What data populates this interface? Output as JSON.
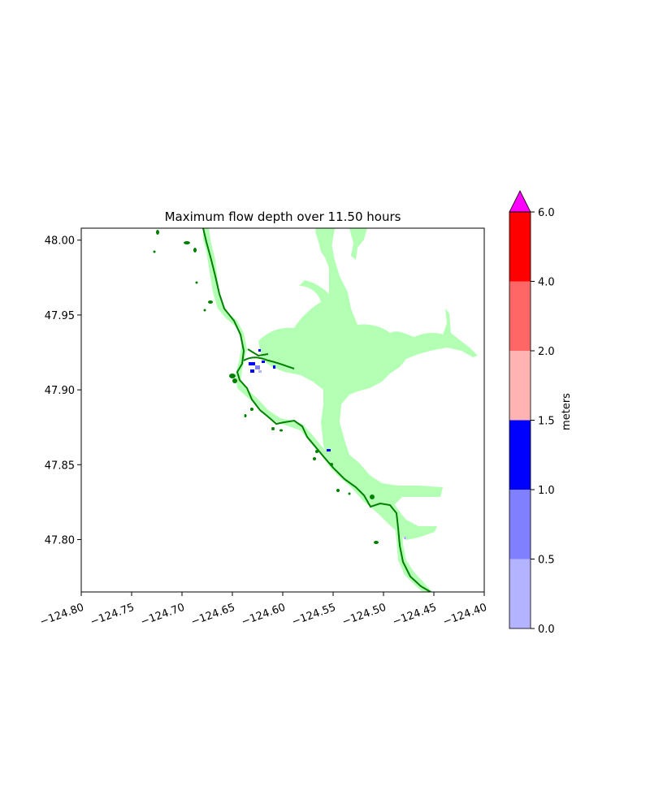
{
  "chart_data": {
    "type": "heatmap",
    "title": "Maximum flow depth over 11.50 hours",
    "xlim": [
      -124.8,
      -124.4
    ],
    "ylim": [
      47.765,
      48.008
    ],
    "x_ticks": [
      {
        "value": -124.8,
        "label": "−124.80"
      },
      {
        "value": -124.75,
        "label": "−124.75"
      },
      {
        "value": -124.7,
        "label": "−124.70"
      },
      {
        "value": -124.65,
        "label": "−124.65"
      },
      {
        "value": -124.6,
        "label": "−124.60"
      },
      {
        "value": -124.55,
        "label": "−124.55"
      },
      {
        "value": -124.5,
        "label": "−124.50"
      },
      {
        "value": -124.45,
        "label": "−124.45"
      },
      {
        "value": -124.4,
        "label": "−124.40"
      }
    ],
    "y_ticks": [
      {
        "value": 47.8,
        "label": "47.80"
      },
      {
        "value": 47.85,
        "label": "47.85"
      },
      {
        "value": 47.9,
        "label": "47.90"
      },
      {
        "value": 47.95,
        "label": "47.95"
      },
      {
        "value": 48.0,
        "label": "48.00"
      }
    ],
    "colorbar": {
      "label": "meters",
      "extend": "max",
      "extend_color": "#ff00ff",
      "levels": [
        {
          "from": 0.0,
          "to": 0.5,
          "color": "#b3b3ff"
        },
        {
          "from": 0.5,
          "to": 1.0,
          "color": "#8080ff"
        },
        {
          "from": 1.0,
          "to": 1.5,
          "color": "#0000ff"
        },
        {
          "from": 1.5,
          "to": 2.0,
          "color": "#ffb3b3"
        },
        {
          "from": 2.0,
          "to": 4.0,
          "color": "#ff6666"
        },
        {
          "from": 4.0,
          "to": 6.0,
          "color": "#ff0000"
        }
      ],
      "tick_labels": [
        "0.0",
        "0.5",
        "1.0",
        "1.5",
        "2.0",
        "4.0",
        "6.0"
      ]
    },
    "colors": {
      "inundated_land": "#b3ffb3",
      "shoreline": "#008000",
      "flow_depth_cells": "#0000ff"
    },
    "grid": false
  }
}
